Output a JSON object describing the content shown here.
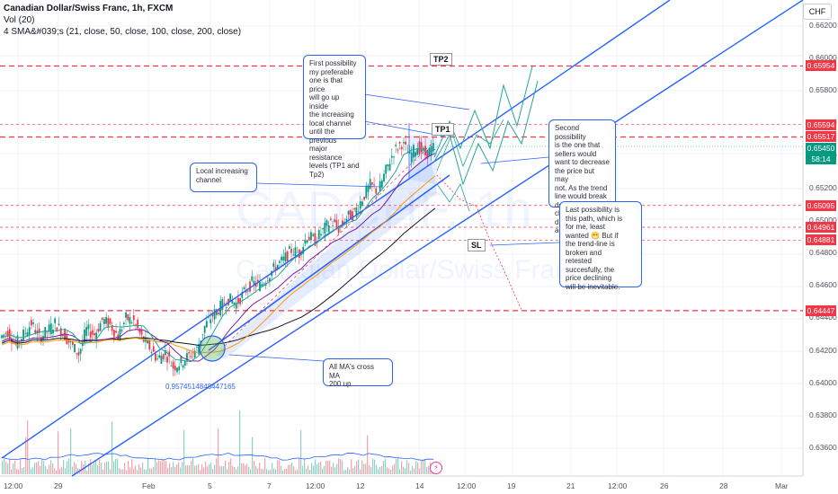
{
  "header": {
    "title": "Canadian Dollar/Swiss Franc, 1h, FXCM",
    "volume": "Vol (20)",
    "sma": "4 SMA&#039;s (21, close, 50, close, 100, close, 200, close)",
    "currency": "CHF"
  },
  "watermark": {
    "symbol": "CADCHF, 1h",
    "name": "Canadian Dollar/Swiss Franc"
  },
  "chart_data": {
    "type": "line",
    "instrument": "CADCHF",
    "ylim": [
      0.635,
      0.6635
    ],
    "price_ticks": [
      "0.66200",
      "0.66000",
      "0.65800",
      "0.65600",
      "0.65400",
      "0.65200",
      "0.65000",
      "0.64800",
      "0.64600",
      "0.64400",
      "0.64200",
      "0.64000",
      "0.63800",
      "0.63600"
    ],
    "time_ticks": [
      "12:00",
      "29",
      "Feb",
      "5",
      "7",
      "12:00",
      "12",
      "14",
      "12:00",
      "19",
      "21",
      "12:00",
      "26",
      "28",
      "Mar"
    ],
    "levels": [
      {
        "label": "0.65954",
        "value": 0.65954,
        "color": "#f23645"
      },
      {
        "label": "0.65594",
        "value": 0.65594,
        "color": "#f23645"
      },
      {
        "label": "0.65517",
        "value": 0.65517,
        "color": "#f23645"
      },
      {
        "label": "0.65095",
        "value": 0.65095,
        "color": "#f23645"
      },
      {
        "label": "0.64961",
        "value": 0.64961,
        "color": "#f23645"
      },
      {
        "label": "0.64881",
        "value": 0.64881,
        "color": "#f23645"
      },
      {
        "label": "0.64447",
        "value": 0.64447,
        "color": "#f23645"
      }
    ],
    "current_price": {
      "label": "0.65450",
      "countdown": "58:14",
      "value": 0.6545,
      "color": "#089981"
    },
    "price_path": [
      0.6428,
      0.6432,
      0.6424,
      0.643,
      0.6437,
      0.6428,
      0.6432,
      0.6437,
      0.6431,
      0.6424,
      0.6418,
      0.6433,
      0.643,
      0.6439,
      0.6436,
      0.6429,
      0.644,
      0.6438,
      0.6428,
      0.6422,
      0.6415,
      0.6419,
      0.641,
      0.6413,
      0.6417,
      0.6421,
      0.6435,
      0.6442,
      0.6447,
      0.6452,
      0.6449,
      0.6456,
      0.6462,
      0.646,
      0.6466,
      0.6472,
      0.6476,
      0.6482,
      0.648,
      0.6491,
      0.6488,
      0.6494,
      0.65,
      0.6495,
      0.6502,
      0.6505,
      0.6514,
      0.6522,
      0.6518,
      0.6531,
      0.6543,
      0.6548,
      0.654,
      0.6546,
      0.6541,
      0.6545
    ],
    "annotations_labels": {
      "tp1": "TP1",
      "tp2": "TP2",
      "sl": "SL"
    },
    "fib_label": "0.9574514848447165"
  },
  "notes": {
    "first": "First possibility\nmy preferable\none is that price\nwill go up inside\nthe increasing\nlocal channel\nuntil the previous\nmajor resistance\nlevels  (TP1 and\nTp2)",
    "local": "Local increasing\nchannel",
    "second": "Second possibility\nis the  one that\nsellers would\nwant to decrease\nthe price but may\nnot. As the  trend\nline would break\ndownwards but\nchange its\ndirection up\nagain.",
    "last": "Last possibility is\nthis path, which is\nfor me, least\nwanted 😁 But if\nthe trend-line is\nbroken and\nretested\nsuccesfully, the\nprice declining\nwill be inevitable.",
    "cross": "All MA's cross MA\n200 up"
  },
  "colors": {
    "channel": "#2962ff",
    "level_line": "#f23645",
    "up": "#089981",
    "down": "#f23645",
    "ma21": "#4caf50",
    "ma50": "#7b1fa2",
    "ma100": "#ff9800",
    "ma200": "#131722"
  }
}
